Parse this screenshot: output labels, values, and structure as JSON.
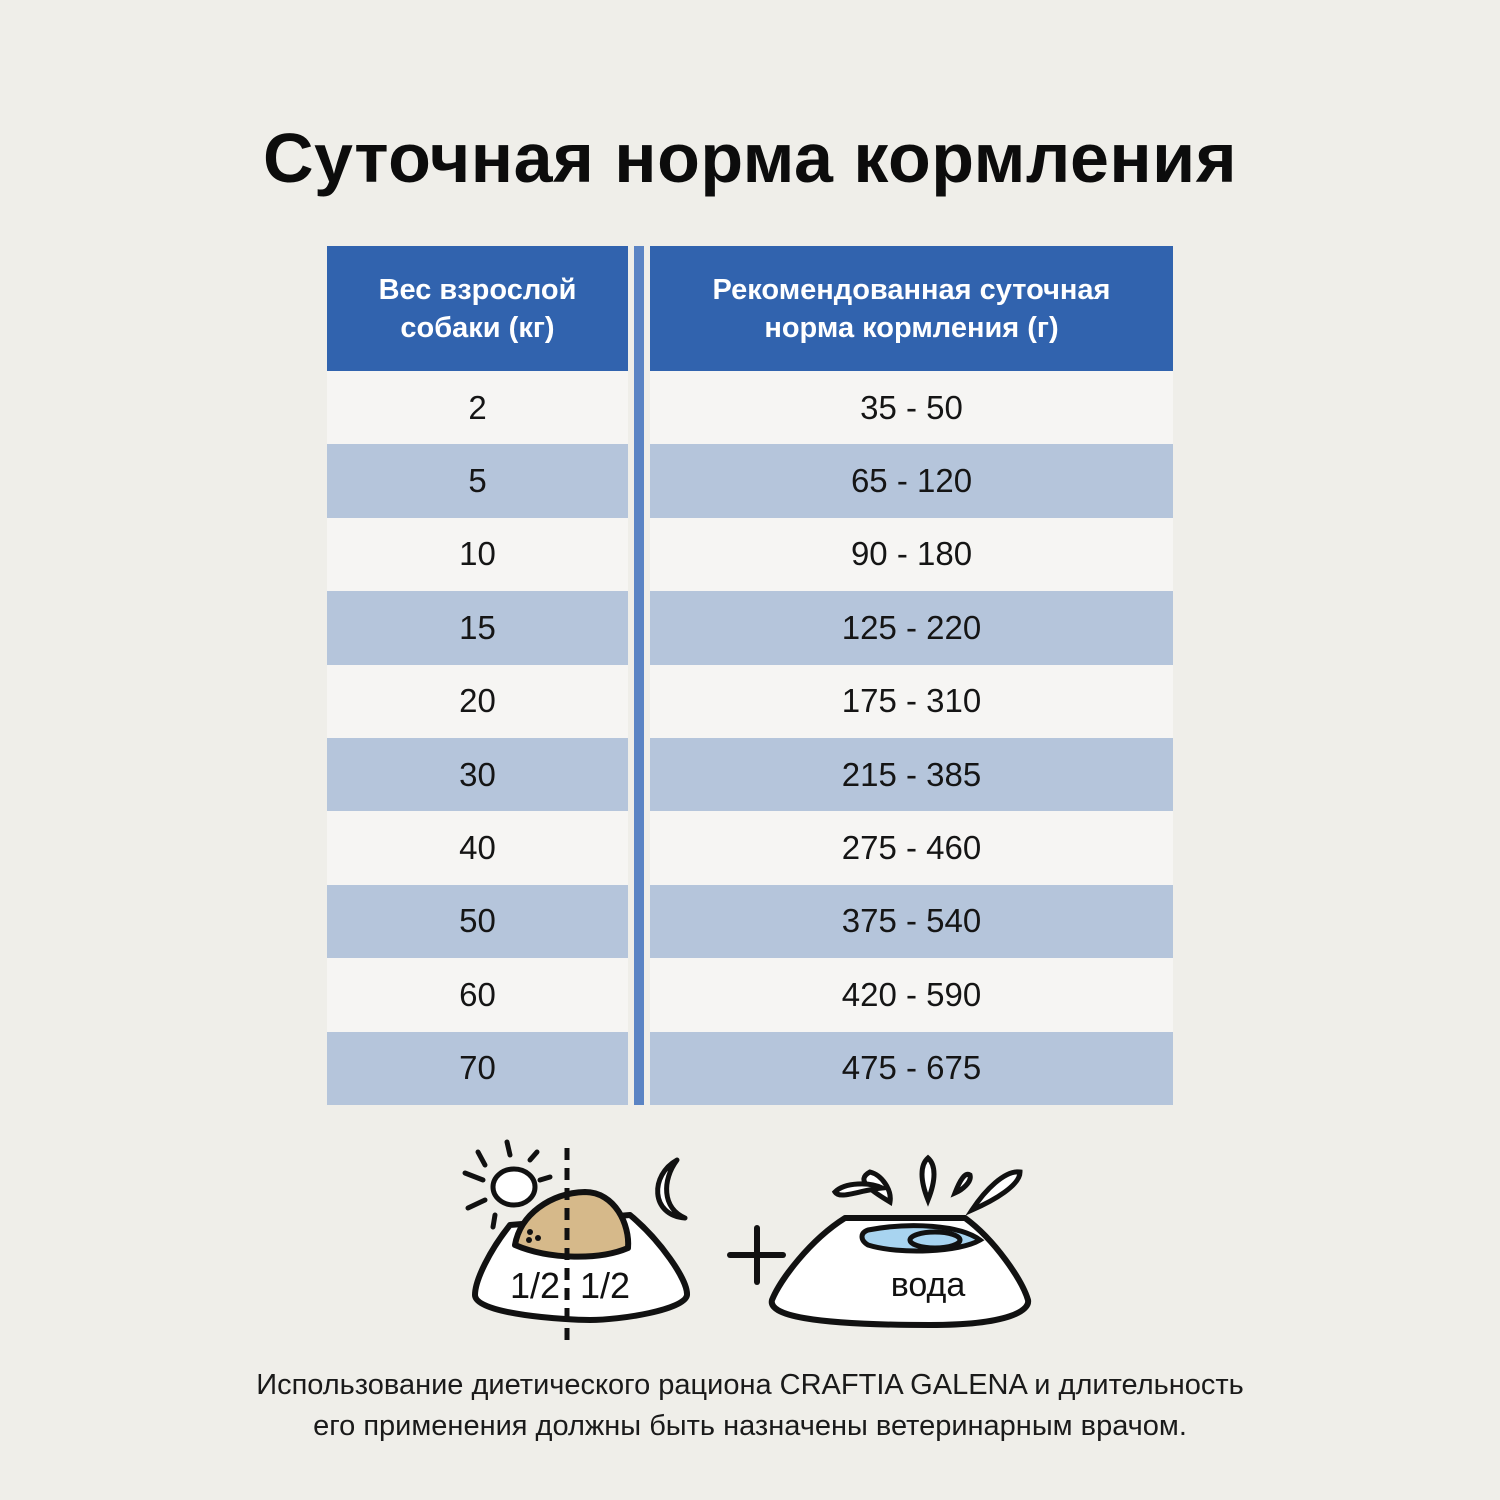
{
  "title": "Суточная норма кормления",
  "table": {
    "headers": [
      "Вес взрослой собаки (кг)",
      "Рекомендованная суточная норма кормления (г)"
    ],
    "rows": [
      [
        "2",
        "35 - 50"
      ],
      [
        "5",
        "65 - 120"
      ],
      [
        "10",
        "90 - 180"
      ],
      [
        "15",
        "125 - 220"
      ],
      [
        "20",
        "175 - 310"
      ],
      [
        "30",
        "215 - 385"
      ],
      [
        "40",
        "275 - 460"
      ],
      [
        "50",
        "375 - 540"
      ],
      [
        "60",
        "420 - 590"
      ],
      [
        "70",
        "475 - 675"
      ]
    ]
  },
  "illustration": {
    "food_half_left": "1/2",
    "food_half_right": "1/2",
    "plus": "+",
    "water_label": "вода",
    "icons": [
      "sun-icon",
      "moon-icon",
      "food-bowl-icon",
      "water-bowl-icon"
    ]
  },
  "footer": {
    "line1": "Использование диетического рациона CRAFTIA GALENA и длительность",
    "line2": "его применения должны быть назначены ветеринарным врачом."
  },
  "colors": {
    "header": "#3163ae",
    "stripe": "#b5c5db",
    "background": "#efeee9",
    "food": "#d6b98a",
    "water": "#a8d4f0"
  }
}
